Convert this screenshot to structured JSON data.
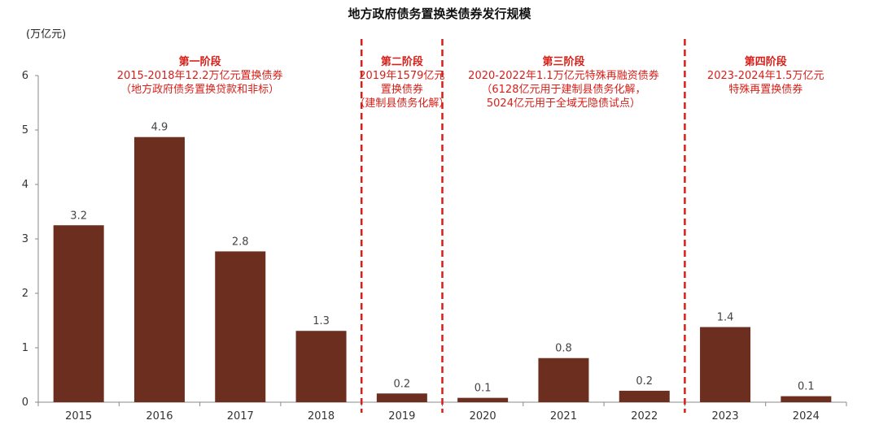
{
  "chart_data": {
    "type": "bar",
    "title": "地方政府债务置换类债券发行规模",
    "ylabel": "(万亿元)",
    "xlabel": "",
    "ylim": [
      0,
      6
    ],
    "yticks": [
      "0",
      "1",
      "2",
      "3",
      "4",
      "5",
      "6"
    ],
    "categories": [
      "2015",
      "2016",
      "2017",
      "2018",
      "2019",
      "2020",
      "2021",
      "2022",
      "2023",
      "2024"
    ],
    "values": [
      3.25,
      4.87,
      2.77,
      1.31,
      0.16,
      0.08,
      0.81,
      0.21,
      1.38,
      0.11
    ],
    "data_labels": [
      "3.2",
      "4.9",
      "2.8",
      "1.3",
      "0.2",
      "0.1",
      "0.8",
      "0.2",
      "1.4",
      "0.1"
    ],
    "bar_color": "#6b2e1f",
    "annotation_color": "#d91e18",
    "dividers_after_category": [
      "2018",
      "2019",
      "2022"
    ],
    "phases": [
      {
        "title": "第一阶段",
        "lines": [
          "2015-2018年12.2万亿元置换债券",
          "（地方政府债务置换贷款和非标）"
        ]
      },
      {
        "title": "第二阶段",
        "lines": [
          "2019年1579亿元",
          "置换债券",
          "（建制县债务化解）"
        ]
      },
      {
        "title": "第三阶段",
        "lines": [
          "2020-2022年1.1万亿元特殊再融资债券",
          "（6128亿元用于建制县债务化解，",
          "5024亿元用于全域无隐债试点）"
        ]
      },
      {
        "title": "第四阶段",
        "lines": [
          "2023-2024年1.5万亿元",
          "特殊再置换债券"
        ]
      }
    ]
  }
}
